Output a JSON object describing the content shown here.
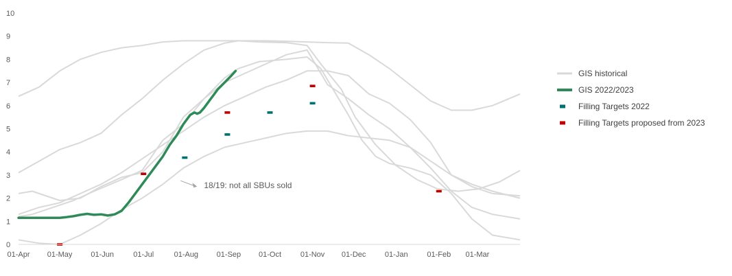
{
  "chart_data": {
    "type": "line",
    "title": "",
    "xlabel": "",
    "ylabel": "",
    "ylim": [
      0,
      10
    ],
    "yticks": [
      "0",
      "1",
      "2",
      "3",
      "4",
      "5",
      "6",
      "7",
      "8",
      "9",
      "10"
    ],
    "xlim": [
      0,
      365
    ],
    "xticks": [
      {
        "label": "01-Apr",
        "day": 0
      },
      {
        "label": "01-May",
        "day": 30
      },
      {
        "label": "01-Jun",
        "day": 61
      },
      {
        "label": "01-Jul",
        "day": 91
      },
      {
        "label": "01-Aug",
        "day": 122
      },
      {
        "label": "01-Sep",
        "day": 153
      },
      {
        "label": "01-Oct",
        "day": 183
      },
      {
        "label": "01-Nov",
        "day": 214
      },
      {
        "label": "01-Dec",
        "day": 244
      },
      {
        "label": "01-Jan",
        "day": 275
      },
      {
        "label": "01-Feb",
        "day": 306
      },
      {
        "label": "01-Mar",
        "day": 334
      }
    ],
    "grid": false,
    "legend_position": "right",
    "colors": {
      "historical": "#d9d9d9",
      "current": "#2e8b57",
      "targets_2022": "#007070",
      "targets_2023": "#c00000",
      "annotation": "#a6a6a6",
      "axis": "#d9d9d9",
      "text": "#595959"
    },
    "historical": [
      {
        "x": [
          0,
          15,
          30,
          45,
          60,
          75,
          90,
          105,
          120,
          135,
          150,
          165,
          180,
          195,
          210,
          225,
          240,
          255,
          270,
          285,
          300,
          315,
          330,
          345,
          365
        ],
        "y": [
          6.4,
          6.8,
          7.5,
          8.0,
          8.3,
          8.5,
          8.6,
          8.75,
          8.8,
          8.8,
          8.8,
          8.8,
          8.8,
          8.78,
          8.75,
          8.72,
          8.7,
          8.2,
          7.6,
          6.9,
          6.2,
          5.8,
          5.8,
          6.0,
          6.5
        ]
      },
      {
        "x": [
          0,
          15,
          30,
          45,
          60,
          75,
          90,
          105,
          120,
          135,
          150,
          160,
          175,
          195,
          210,
          220,
          235,
          245,
          260,
          275,
          290,
          305,
          320,
          335,
          350,
          365
        ],
        "y": [
          3.1,
          3.6,
          4.1,
          4.4,
          4.8,
          5.6,
          6.3,
          7.1,
          7.8,
          8.4,
          8.7,
          8.8,
          8.75,
          8.72,
          8.6,
          7.8,
          6.7,
          5.5,
          4.3,
          3.4,
          2.8,
          2.4,
          2.3,
          2.4,
          2.7,
          3.2
        ]
      },
      {
        "x": [
          0,
          10,
          30,
          45,
          60,
          75,
          90,
          105,
          120,
          135,
          150,
          165,
          180,
          195,
          210,
          225,
          240,
          255,
          270,
          285,
          300,
          315,
          330,
          345,
          365
        ],
        "y": [
          2.2,
          2.3,
          1.9,
          2.0,
          2.5,
          2.9,
          3.1,
          4.0,
          5.5,
          6.3,
          7.0,
          7.4,
          7.8,
          8.2,
          8.4,
          6.9,
          6.3,
          5.6,
          5.0,
          4.2,
          3.6,
          3.0,
          2.6,
          2.3,
          2.0
        ]
      },
      {
        "x": [
          0,
          15,
          30,
          45,
          60,
          75,
          90,
          105,
          120,
          135,
          150,
          165,
          180,
          195,
          210,
          225,
          240,
          255,
          270,
          285,
          300,
          315,
          330,
          345,
          365
        ],
        "y": [
          1.3,
          1.6,
          1.8,
          2.2,
          2.6,
          3.1,
          3.7,
          4.3,
          4.9,
          5.5,
          6.0,
          6.4,
          6.8,
          7.1,
          7.5,
          7.5,
          7.3,
          6.5,
          6.1,
          5.4,
          4.4,
          3.0,
          2.5,
          2.2,
          2.1
        ]
      },
      {
        "x": [
          0,
          15,
          30,
          45,
          60,
          75,
          90,
          105,
          120,
          135,
          150,
          165,
          180,
          195,
          210,
          225,
          240,
          255,
          270,
          285,
          300,
          315,
          330,
          345,
          365
        ],
        "y": [
          0.2,
          0.05,
          0.0,
          0.4,
          0.9,
          1.5,
          2.0,
          2.6,
          3.3,
          3.8,
          4.2,
          4.4,
          4.6,
          4.8,
          4.9,
          4.9,
          4.7,
          4.6,
          4.5,
          4.2,
          3.3,
          2.3,
          1.6,
          1.3,
          1.1
        ]
      },
      {
        "x": [
          0,
          10,
          25,
          40,
          55,
          75,
          90,
          105,
          120,
          135,
          150,
          160,
          175,
          195,
          210,
          220,
          230,
          240,
          250,
          260,
          270,
          285,
          300,
          315,
          330,
          345,
          365
        ],
        "y": [
          1.2,
          1.3,
          1.6,
          1.9,
          2.3,
          2.8,
          3.2,
          4.5,
          5.2,
          6.3,
          7.2,
          7.6,
          7.9,
          8.0,
          8.1,
          7.6,
          6.6,
          5.6,
          4.5,
          3.8,
          3.5,
          3.3,
          3.0,
          2.2,
          1.1,
          0.4,
          0.2
        ]
      }
    ],
    "current": {
      "name": "GIS 2022/2023",
      "x": [
        0,
        5,
        10,
        15,
        20,
        25,
        30,
        35,
        40,
        45,
        50,
        55,
        60,
        65,
        70,
        75,
        80,
        85,
        90,
        95,
        100,
        105,
        110,
        115,
        120,
        125,
        128,
        130,
        132,
        135,
        140,
        145,
        150,
        155,
        158
      ],
      "y": [
        1.15,
        1.15,
        1.15,
        1.15,
        1.15,
        1.15,
        1.15,
        1.18,
        1.22,
        1.28,
        1.32,
        1.28,
        1.3,
        1.25,
        1.3,
        1.45,
        1.8,
        2.2,
        2.6,
        3.0,
        3.4,
        3.8,
        4.3,
        4.7,
        5.2,
        5.6,
        5.7,
        5.65,
        5.7,
        5.9,
        6.3,
        6.7,
        7.0,
        7.3,
        7.5
      ]
    },
    "targets_2022": {
      "x": [
        121,
        152,
        183,
        214
      ],
      "y": [
        3.75,
        4.75,
        5.7,
        6.1
      ]
    },
    "targets_2023": {
      "x": [
        30,
        91,
        152,
        214,
        306
      ],
      "y": [
        0.0,
        3.05,
        5.7,
        6.85,
        2.3
      ]
    },
    "legend": [
      {
        "label": "GIS historical",
        "kind": "line",
        "color": "#d9d9d9"
      },
      {
        "label": "GIS 2022/2023",
        "kind": "line",
        "color": "#2e8b57"
      },
      {
        "label": "Filling Targets 2022",
        "kind": "marker",
        "color": "#007070"
      },
      {
        "label": "Filling Targets proposed from 2023",
        "kind": "marker",
        "color": "#c00000"
      }
    ],
    "annotation": {
      "text": "18/19: not all SBUs sold",
      "x": 135,
      "y": 2.55,
      "arrow_from": [
        118,
        2.75
      ],
      "arrow_to": [
        130,
        2.5
      ]
    }
  }
}
